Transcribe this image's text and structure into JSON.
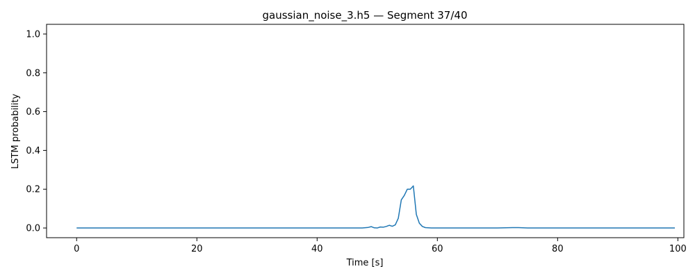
{
  "chart_data": {
    "type": "line",
    "title": "gaussian_noise_3.h5 — Segment 37/40",
    "xlabel": "Time [s]",
    "ylabel": "LSTM probability",
    "xlim": [
      -5,
      101
    ],
    "ylim": [
      -0.05,
      1.05
    ],
    "xticks": [
      0,
      20,
      40,
      60,
      80,
      100
    ],
    "yticks": [
      0.0,
      0.2,
      0.4,
      0.6,
      0.8,
      1.0
    ],
    "xtick_labels": [
      "0",
      "20",
      "40",
      "60",
      "80",
      "100"
    ],
    "ytick_labels": [
      "0.0",
      "0.2",
      "0.4",
      "0.6",
      "0.8",
      "1.0"
    ],
    "grid": false,
    "series": [
      {
        "color": "#1f77b4",
        "x": [
          0,
          10,
          20,
          30,
          40,
          47.5,
          48.5,
          49.0,
          49.5,
          50.0,
          50.5,
          51.0,
          51.5,
          52.0,
          52.5,
          53.0,
          53.5,
          54.0,
          54.5,
          55.0,
          55.5,
          56.0,
          56.5,
          57.0,
          57.5,
          58.0,
          59.0,
          60,
          65,
          70,
          72.5,
          73.5,
          75,
          80,
          90,
          99.5
        ],
        "y": [
          0.0,
          0.0,
          0.0,
          0.0,
          0.0,
          0.0,
          0.003,
          0.007,
          0.001,
          0.0,
          0.005,
          0.004,
          0.008,
          0.014,
          0.009,
          0.016,
          0.05,
          0.145,
          0.168,
          0.2,
          0.2,
          0.217,
          0.07,
          0.025,
          0.008,
          0.002,
          0.0,
          0.0,
          0.0,
          0.0,
          0.002,
          0.002,
          0.0,
          0.0,
          0.0,
          0.0
        ]
      }
    ]
  }
}
